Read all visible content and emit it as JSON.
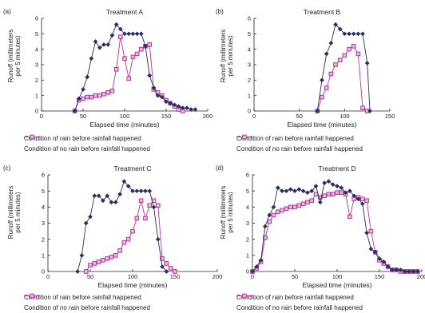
{
  "chart_data": [
    {
      "type": "line",
      "panel_label": "(a)",
      "title": "Treatment A",
      "xlabel": "Elapsed time (minutes)",
      "ylabel": "Runoff (millimeters per 5 minutes)",
      "xlim": [
        0,
        200
      ],
      "ylim": [
        0,
        6
      ],
      "xticks": [
        "0",
        "50",
        "100",
        "150",
        "200"
      ],
      "yticks": [
        "0",
        "1",
        "2",
        "3",
        "4",
        "5",
        "6"
      ],
      "series": [
        {
          "name": "Condition of rain before rainfall happened",
          "color": "#2a2c63",
          "marker": "diamond",
          "x": [
            40,
            45,
            50,
            55,
            60,
            65,
            70,
            75,
            80,
            85,
            90,
            95,
            100,
            105,
            110,
            115,
            120,
            125,
            130,
            135,
            140,
            145,
            150,
            155,
            160,
            165,
            170,
            175,
            180,
            185
          ],
          "y": [
            0,
            0.8,
            1.4,
            2.2,
            3.4,
            4.5,
            4.1,
            4.3,
            4.3,
            4.9,
            5.6,
            5.3,
            5.0,
            5.0,
            5.0,
            5.0,
            5.0,
            4.2,
            2.3,
            1.5,
            1.0,
            0.9,
            0.6,
            0.5,
            0.4,
            0.3,
            0.2,
            0.2,
            0.1,
            0.1
          ]
        },
        {
          "name": "Condition of no rain before rainfall happened",
          "color": "#b8339a",
          "marker": "square",
          "x": [
            40,
            45,
            50,
            55,
            60,
            65,
            70,
            75,
            80,
            85,
            90,
            95,
            100,
            105,
            110,
            115,
            120,
            125,
            130,
            135,
            140,
            145,
            150,
            155,
            160,
            165,
            170
          ],
          "y": [
            0,
            0.7,
            0.8,
            0.9,
            0.9,
            1.0,
            1.0,
            1.1,
            1.2,
            1.3,
            2.7,
            4.8,
            3.4,
            2.1,
            3.5,
            3.7,
            4.0,
            4.2,
            4.3,
            1.4,
            1.2,
            1.0,
            0.7,
            0.5,
            0.3,
            0.1,
            0
          ]
        }
      ]
    },
    {
      "type": "line",
      "panel_label": "(b)",
      "title": "Treatment B",
      "xlabel": "Elapsed time (minutes)",
      "ylabel": "Runoff (millimeters per 5 minutes)",
      "xlim": [
        0,
        150
      ],
      "ylim": [
        0,
        6
      ],
      "xticks": [
        "0",
        "50",
        "100",
        "150"
      ],
      "yticks": [
        "0",
        "1",
        "2",
        "3",
        "4",
        "5",
        "6"
      ],
      "series": [
        {
          "name": "Condition of rain before rainfall happened",
          "color": "#2a2c63",
          "marker": "diamond",
          "x": [
            70,
            75,
            80,
            85,
            90,
            95,
            100,
            105,
            110,
            115,
            120,
            125,
            128
          ],
          "y": [
            0,
            2.0,
            3.7,
            4.4,
            5.6,
            5.3,
            5.0,
            5.0,
            5.0,
            5.0,
            5.0,
            3.1,
            0
          ]
        },
        {
          "name": "Condition of no rain before rainfall happened",
          "color": "#b8339a",
          "marker": "square",
          "x": [
            70,
            75,
            80,
            85,
            90,
            95,
            100,
            105,
            110,
            115,
            120,
            125
          ],
          "y": [
            0,
            0.9,
            1.5,
            2.4,
            3.0,
            3.3,
            3.6,
            4.0,
            4.2,
            3.7,
            0.2,
            0
          ]
        }
      ]
    },
    {
      "type": "line",
      "panel_label": "(c)",
      "title": "Treatment C",
      "xlabel": "Elapsed time (minutes)",
      "ylabel": "Runoff (millimeters per 5 minutes)",
      "xlim": [
        0,
        200
      ],
      "ylim": [
        0,
        6
      ],
      "xticks": [
        "0",
        "50",
        "100",
        "150",
        "200"
      ],
      "yticks": [
        "0",
        "1",
        "2",
        "3",
        "4",
        "5",
        "6"
      ],
      "series": [
        {
          "name": "Condition of rain before rainfall happened",
          "color": "#2a2c63",
          "marker": "diamond",
          "x": [
            35,
            40,
            45,
            50,
            55,
            60,
            65,
            70,
            75,
            80,
            85,
            90,
            95,
            100,
            105,
            110,
            115,
            120,
            125,
            130,
            135,
            140
          ],
          "y": [
            0,
            1.0,
            3.0,
            3.4,
            4.7,
            4.7,
            4.4,
            4.7,
            4.3,
            4.3,
            4.8,
            5.6,
            5.3,
            5.0,
            5.0,
            5.0,
            5.0,
            5.0,
            4.0,
            2.0,
            0.3,
            0
          ]
        },
        {
          "name": "Condition of no rain before rainfall happened",
          "color": "#b8339a",
          "marker": "square",
          "x": [
            45,
            50,
            55,
            60,
            65,
            70,
            75,
            80,
            85,
            90,
            95,
            100,
            105,
            110,
            115,
            120,
            125,
            130,
            135,
            140,
            145,
            150
          ],
          "y": [
            0,
            0.4,
            0.5,
            0.6,
            0.7,
            0.8,
            0.9,
            1.0,
            1.3,
            1.8,
            2.0,
            2.5,
            3.3,
            4.4,
            3.3,
            4.1,
            4.4,
            4.1,
            0.8,
            0.5,
            0.2,
            0
          ]
        }
      ]
    },
    {
      "type": "line",
      "panel_label": "(d)",
      "title": "Treatment D",
      "xlabel": "Elapsed time (minutes)",
      "ylabel": "Runoff (millimeters per 5 minutes)",
      "xlim": [
        0,
        200
      ],
      "ylim": [
        0,
        6
      ],
      "xticks": [
        "0",
        "50",
        "100",
        "150",
        "200"
      ],
      "yticks": [
        "0",
        "1",
        "2",
        "3",
        "4",
        "5",
        "6"
      ],
      "series": [
        {
          "name": "Condition of rain before rainfall happened",
          "color": "#2a2c63",
          "marker": "diamond",
          "x": [
            0,
            5,
            10,
            15,
            20,
            25,
            30,
            35,
            40,
            45,
            50,
            55,
            60,
            65,
            70,
            75,
            80,
            85,
            90,
            95,
            100,
            105,
            110,
            115,
            120,
            125,
            130,
            135,
            140,
            145,
            150,
            155,
            160,
            165,
            170,
            175,
            180,
            185,
            190,
            195
          ],
          "y": [
            0,
            0.3,
            0.7,
            2.8,
            3.5,
            4.0,
            5.2,
            5.0,
            5.0,
            5.1,
            5.0,
            5.1,
            5.0,
            4.9,
            5.0,
            5.3,
            4.3,
            5.5,
            5.6,
            5.4,
            5.3,
            5.2,
            4.9,
            5.0,
            4.7,
            4.5,
            4.2,
            2.4,
            1.4,
            1.2,
            0.8,
            0.6,
            0.3,
            0.1,
            0.1,
            0.1,
            0,
            0,
            0,
            0
          ]
        },
        {
          "name": "Condition of no rain before rainfall happened",
          "color": "#b8339a",
          "marker": "square",
          "x": [
            0,
            5,
            10,
            15,
            20,
            25,
            30,
            35,
            40,
            45,
            50,
            55,
            60,
            65,
            70,
            75,
            80,
            85,
            90,
            95,
            100,
            105,
            110,
            115,
            120,
            125,
            130,
            135,
            140,
            145,
            150,
            155,
            160,
            165,
            170,
            175,
            180,
            185,
            190,
            195
          ],
          "y": [
            0,
            0.2,
            0.6,
            2.1,
            3.1,
            3.5,
            3.7,
            3.8,
            3.9,
            4.0,
            4.0,
            4.1,
            4.2,
            4.3,
            4.4,
            4.8,
            4.6,
            4.7,
            4.8,
            4.8,
            4.9,
            4.9,
            4.8,
            3.4,
            4.5,
            4.6,
            4.5,
            4.4,
            2.5,
            1.2,
            0.7,
            0.5,
            0.3,
            0.1,
            0.1,
            0,
            0,
            0,
            0,
            0
          ]
        }
      ]
    }
  ]
}
